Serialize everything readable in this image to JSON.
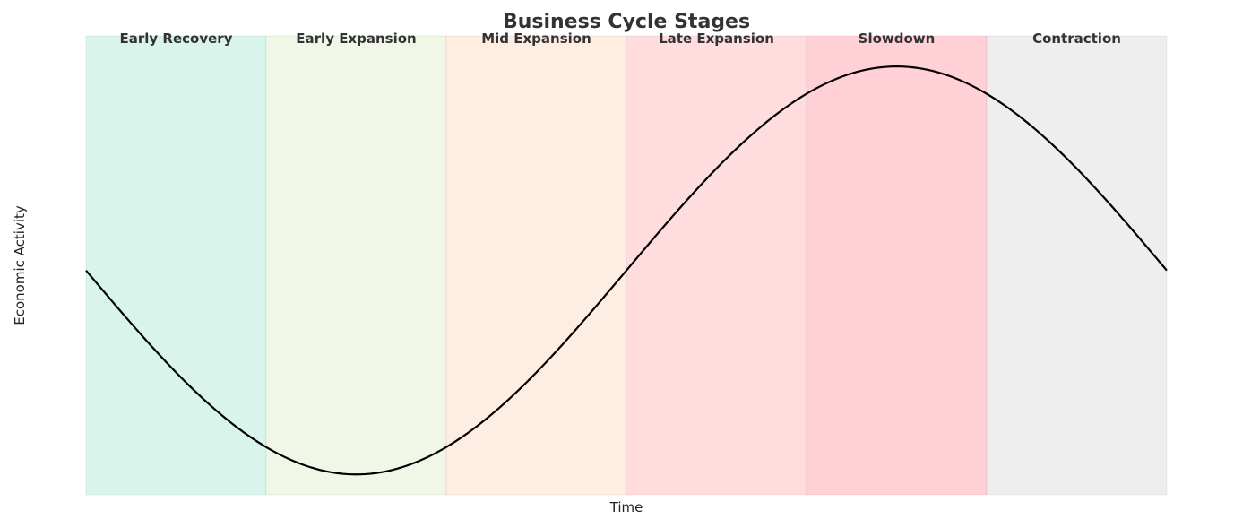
{
  "chart_data": {
    "type": "line",
    "title": "Business Cycle Stages",
    "xlabel": "Time",
    "ylabel": "Economic Activity",
    "grid": false,
    "legend": "none",
    "line_color": "#000000",
    "xlim": [
      0,
      6
    ],
    "ylim": [
      -1.1,
      1.15
    ],
    "curve": "sine wave: starts at mid level, trough near end of Early Recovery/start of Early Expansion, peak in Slowdown, returns to mid level at end of Contraction",
    "stages": [
      {
        "label": "Early Recovery",
        "start": 0,
        "end": 1,
        "color": "#d9f4ea"
      },
      {
        "label": "Early Expansion",
        "start": 1,
        "end": 2,
        "color": "#f0f7e7"
      },
      {
        "label": "Mid Expansion",
        "start": 2,
        "end": 3,
        "color": "#feede1"
      },
      {
        "label": "Late Expansion",
        "start": 3,
        "end": 4,
        "color": "#ffdddf"
      },
      {
        "label": "Slowdown",
        "start": 4,
        "end": 5,
        "color": "#ffd1d6"
      },
      {
        "label": "Contraction",
        "start": 5,
        "end": 6,
        "color": "#eeeeee"
      }
    ]
  }
}
